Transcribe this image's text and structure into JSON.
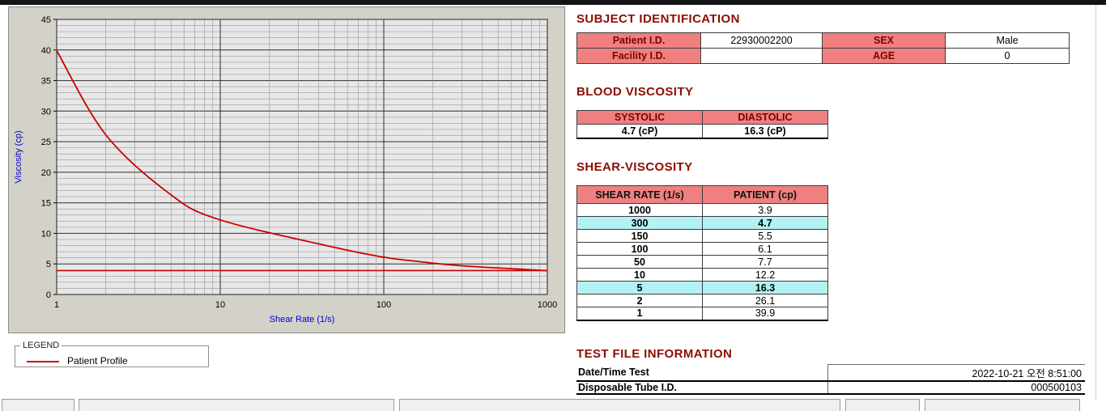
{
  "subject_identification": {
    "title": "SUBJECT IDENTIFICATION",
    "rows": [
      {
        "label1": "Patient I.D.",
        "value1": "22930002200",
        "label2": "SEX",
        "value2": "Male"
      },
      {
        "label1": "Facility I.D.",
        "value1": "",
        "label2": "AGE",
        "value2": "0"
      }
    ]
  },
  "blood_viscosity": {
    "title": "BLOOD VISCOSITY",
    "headers": [
      "SYSTOLIC",
      "DIASTOLIC"
    ],
    "values": [
      "4.7 (cP)",
      "16.3 (cP)"
    ]
  },
  "shear_viscosity": {
    "title": "SHEAR-VISCOSITY",
    "headers": [
      "SHEAR RATE (1/s)",
      "PATIENT (cp)"
    ],
    "rows": [
      {
        "rate": "1000",
        "value": "3.9",
        "highlight": false
      },
      {
        "rate": "300",
        "value": "4.7",
        "highlight": true
      },
      {
        "rate": "150",
        "value": "5.5",
        "highlight": false
      },
      {
        "rate": "100",
        "value": "6.1",
        "highlight": false
      },
      {
        "rate": "50",
        "value": "7.7",
        "highlight": false
      },
      {
        "rate": "10",
        "value": "12.2",
        "highlight": false
      },
      {
        "rate": "5",
        "value": "16.3",
        "highlight": true
      },
      {
        "rate": "2",
        "value": "26.1",
        "highlight": false
      },
      {
        "rate": "1",
        "value": "39.9",
        "highlight": false
      }
    ]
  },
  "test_file_information": {
    "title": "TEST FILE INFORMATION",
    "rows": [
      {
        "label": "Date/Time Test",
        "value": "2022-10-21  오전 8:51:00"
      },
      {
        "label": "Disposable Tube I.D.",
        "value": "000500103"
      }
    ]
  },
  "legend": {
    "box_label": "LEGEND",
    "series_label": "Patient Profile"
  },
  "chart_data": {
    "type": "line",
    "title": "",
    "xlabel": "Shear Rate (1/s)",
    "ylabel": "Viscosity (cp)",
    "x_scale": "log",
    "xlim": [
      1,
      1000
    ],
    "ylim": [
      0,
      45
    ],
    "x_ticks": [
      1,
      10,
      100,
      1000
    ],
    "y_ticks": [
      0,
      5,
      10,
      15,
      20,
      25,
      30,
      35,
      40,
      45
    ],
    "grid": true,
    "legend_position": "below-left",
    "baseline": 3.9,
    "series": [
      {
        "name": "Patient Profile",
        "color": "#cc0000",
        "x": [
          1,
          2,
          5,
          10,
          50,
          100,
          150,
          300,
          1000
        ],
        "y": [
          39.9,
          26.1,
          16.3,
          12.2,
          7.7,
          6.1,
          5.5,
          4.7,
          3.9
        ]
      }
    ]
  },
  "colors": {
    "heading": "#8b0e00",
    "table_header_bg": "#f08080",
    "highlight_bg": "#b2f2f2",
    "series_red": "#cc0000",
    "axis_label_blue": "#0000cc"
  }
}
